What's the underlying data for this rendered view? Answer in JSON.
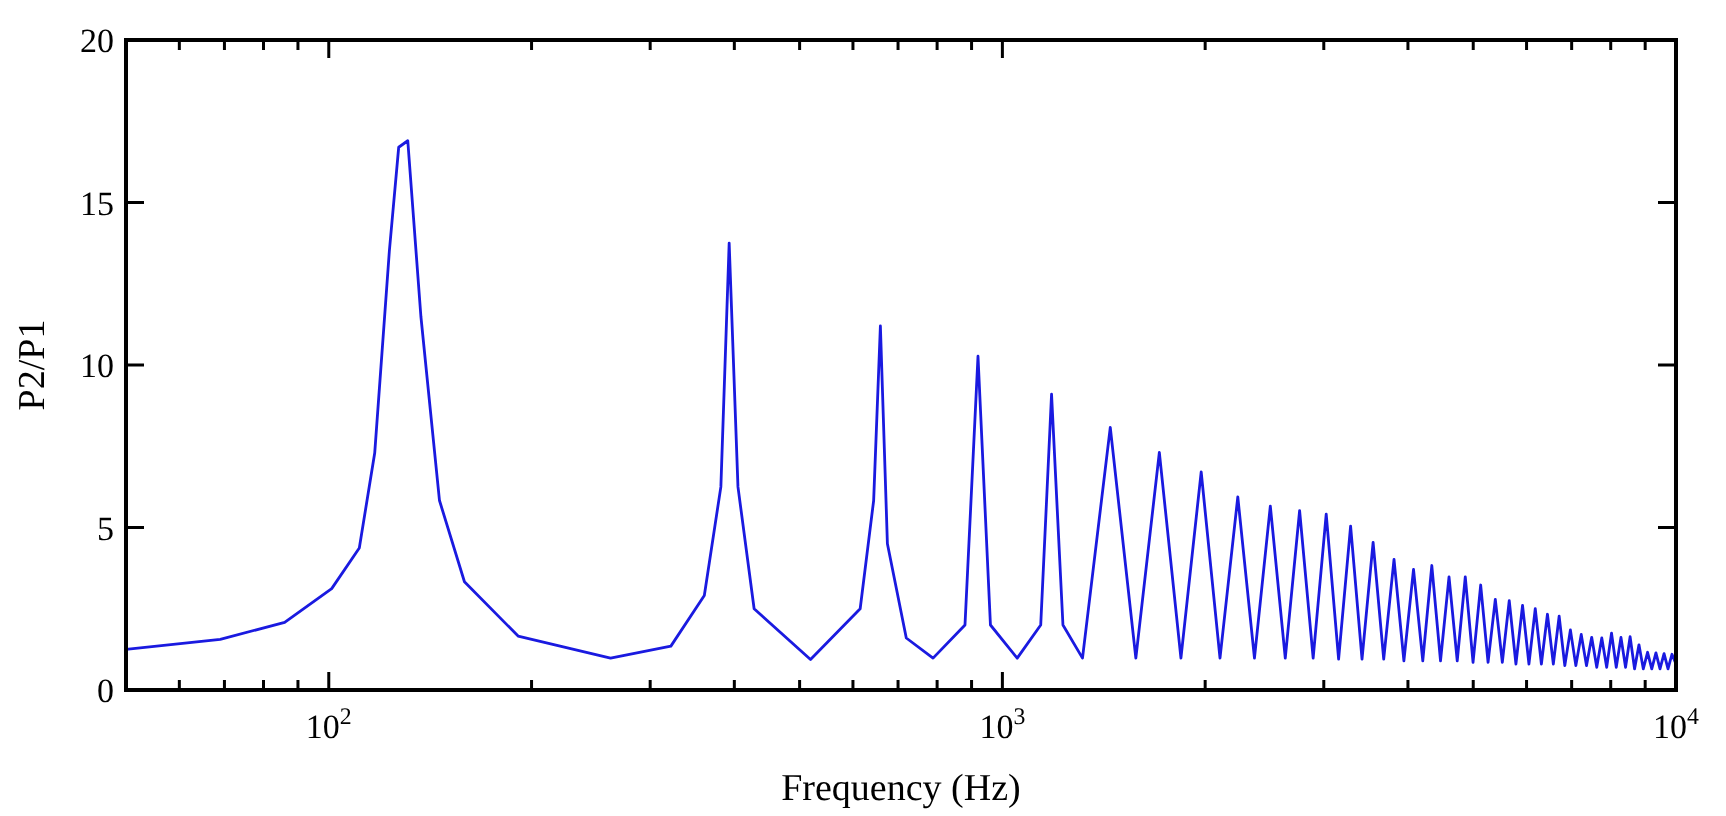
{
  "chart_data": {
    "type": "line",
    "xlabel": "Frequency (Hz)",
    "ylabel": "P2/P1",
    "log": "x",
    "grid": false,
    "marker": "none",
    "line_style": "solid",
    "xlim": [
      50,
      10000
    ],
    "ylim": [
      0,
      20
    ],
    "xticks": [
      {
        "value": 50,
        "label": null
      },
      {
        "value": 60,
        "label": null
      },
      {
        "value": 70,
        "label": null
      },
      {
        "value": 80,
        "label": null
      },
      {
        "value": 90,
        "label": null
      },
      {
        "value": 100,
        "label": "10$^{2}$"
      },
      {
        "value": 200,
        "label": null
      },
      {
        "value": 300,
        "label": null
      },
      {
        "value": 400,
        "label": null
      },
      {
        "value": 500,
        "label": null
      },
      {
        "value": 600,
        "label": null
      },
      {
        "value": 700,
        "label": null
      },
      {
        "value": 800,
        "label": null
      },
      {
        "value": 900,
        "label": null
      },
      {
        "value": 1000,
        "label": "10$^{3}$"
      },
      {
        "value": 2000,
        "label": null
      },
      {
        "value": 3000,
        "label": null
      },
      {
        "value": 4000,
        "label": null
      },
      {
        "value": 5000,
        "label": null
      },
      {
        "value": 6000,
        "label": null
      },
      {
        "value": 7000,
        "label": null
      },
      {
        "value": 8000,
        "label": null
      },
      {
        "value": 9000,
        "label": null
      },
      {
        "value": 10000,
        "label": "10$^{4}$"
      }
    ],
    "yticks": [
      0,
      5,
      10,
      15,
      20
    ],
    "series": [
      {
        "color": "#1a1ae0",
        "x": [
          50,
          69,
          86,
          101,
          111,
          117,
          123,
          127,
          131,
          137,
          146,
          159,
          191,
          262,
          322,
          361,
          382,
          393,
          405,
          428,
          519,
          615,
          644,
          659,
          675,
          720,
          789,
          880,
          920,
          960,
          1052,
          1140,
          1183,
          1230,
          1315,
          1446,
          1578,
          1710,
          1841,
          1973,
          2104,
          2236,
          2367,
          2499,
          2630,
          2762,
          2893,
          3025,
          3156,
          3288,
          3419,
          3551,
          3682,
          3814,
          3945,
          4077,
          4208,
          4340,
          4471,
          4603,
          4734,
          4866,
          4997,
          5129,
          5260,
          5392,
          5523,
          5655,
          5786,
          5918,
          6049,
          6181,
          6312,
          6444,
          6575,
          6707,
          6838,
          6970,
          7101,
          7233,
          7364,
          7496,
          7627,
          7759,
          7890,
          8022,
          8153,
          8285,
          8416,
          8548,
          8679,
          8811,
          8942,
          9074,
          9205,
          9337,
          9468,
          9600,
          9731,
          9863,
          10000
        ],
        "values": [
          1.25,
          1.56,
          2.08,
          3.12,
          4.37,
          7.29,
          13.5,
          16.7,
          16.9,
          11.5,
          5.83,
          3.33,
          1.66,
          0.98,
          1.35,
          2.91,
          6.25,
          13.75,
          6.25,
          2.5,
          0.94,
          2.5,
          5.83,
          11.2,
          4.5,
          1.6,
          0.98,
          2.0,
          10.27,
          2.0,
          0.98,
          2.0,
          9.1,
          2.0,
          0.98,
          8.08,
          0.98,
          7.31,
          0.98,
          6.71,
          0.98,
          5.94,
          0.98,
          5.66,
          0.98,
          5.52,
          0.98,
          5.41,
          0.95,
          5.04,
          0.95,
          4.54,
          0.95,
          4.02,
          0.9,
          3.71,
          0.9,
          3.83,
          0.9,
          3.48,
          0.9,
          3.48,
          0.85,
          3.23,
          0.85,
          2.79,
          0.85,
          2.75,
          0.8,
          2.6,
          0.8,
          2.5,
          0.8,
          2.33,
          0.8,
          2.27,
          0.75,
          1.85,
          0.75,
          1.71,
          0.75,
          1.62,
          0.7,
          1.6,
          0.7,
          1.75,
          0.7,
          1.62,
          0.7,
          1.64,
          0.65,
          1.39,
          0.65,
          1.16,
          0.65,
          1.14,
          0.65,
          1.12,
          0.65,
          1.1,
          0.8
        ]
      }
    ]
  }
}
